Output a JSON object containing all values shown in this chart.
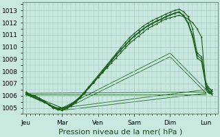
{
  "bg_color": "#c8e8e0",
  "grid_color": "#a0c8b8",
  "line_color": "#1a5c1a",
  "ylim": [
    1004.5,
    1013.7
  ],
  "yticks": [
    1005,
    1006,
    1007,
    1008,
    1009,
    1010,
    1011,
    1012,
    1013
  ],
  "xlabel": "Pression niveau de la mer( hPa )",
  "xlabel_fontsize": 8,
  "tick_fontsize": 6.5,
  "x_day_labels": [
    "Jeu",
    "Mar",
    "Ven",
    "Sam",
    "Dim",
    "Lun"
  ],
  "x_day_positions": [
    0,
    24,
    48,
    72,
    96,
    120
  ],
  "xlim": [
    -2,
    128
  ],
  "curves": [
    {
      "x": [
        0,
        3,
        6,
        9,
        12,
        15,
        18,
        21,
        24,
        27,
        30,
        33,
        36,
        39,
        42,
        45,
        48,
        51,
        54,
        57,
        60,
        63,
        66,
        69,
        72,
        75,
        78,
        81,
        84,
        87,
        90,
        93,
        96,
        99,
        102,
        105,
        108,
        111,
        114,
        117,
        120,
        121,
        122,
        123,
        124
      ],
      "y": [
        1006.2,
        1006.1,
        1005.9,
        1005.7,
        1005.5,
        1005.3,
        1005.1,
        1005.0,
        1005.0,
        1005.1,
        1005.3,
        1005.6,
        1005.9,
        1006.3,
        1006.7,
        1007.1,
        1007.5,
        1007.9,
        1008.3,
        1008.7,
        1009.1,
        1009.5,
        1009.9,
        1010.3,
        1010.6,
        1010.9,
        1011.2,
        1011.5,
        1011.7,
        1011.9,
        1012.1,
        1012.3,
        1012.4,
        1012.5,
        1012.6,
        1012.5,
        1012.3,
        1012.0,
        1011.5,
        1010.8,
        1006.5,
        1006.3,
        1006.2,
        1006.3,
        1006.5
      ],
      "marker": ".",
      "ms": 2.0,
      "lw": 0.8
    },
    {
      "x": [
        0,
        3,
        6,
        9,
        12,
        15,
        18,
        21,
        24,
        27,
        30,
        33,
        36,
        39,
        42,
        45,
        48,
        51,
        54,
        57,
        60,
        63,
        66,
        69,
        72,
        75,
        78,
        81,
        84,
        87,
        90,
        93,
        96,
        99,
        102,
        105,
        108,
        111,
        114,
        117,
        120,
        121,
        122,
        123,
        124
      ],
      "y": [
        1006.3,
        1006.1,
        1006.0,
        1005.8,
        1005.6,
        1005.3,
        1005.1,
        1004.95,
        1004.95,
        1005.05,
        1005.25,
        1005.55,
        1005.9,
        1006.3,
        1006.75,
        1007.2,
        1007.65,
        1008.1,
        1008.55,
        1009.0,
        1009.45,
        1009.9,
        1010.35,
        1010.75,
        1011.1,
        1011.4,
        1011.7,
        1011.95,
        1012.15,
        1012.35,
        1012.5,
        1012.7,
        1012.85,
        1013.0,
        1013.1,
        1012.9,
        1012.5,
        1011.5,
        1009.5,
        1009.2,
        1007.0,
        1006.8,
        1006.6,
        1006.5,
        1006.4
      ],
      "marker": "+",
      "ms": 2.5,
      "lw": 0.8
    },
    {
      "x": [
        0,
        3,
        6,
        9,
        12,
        15,
        18,
        21,
        24,
        27,
        30,
        33,
        36,
        39,
        42,
        45,
        48,
        51,
        54,
        57,
        60,
        63,
        66,
        69,
        72,
        75,
        78,
        81,
        84,
        87,
        90,
        93,
        96,
        99,
        102,
        105,
        108,
        111,
        114,
        117,
        120,
        121,
        122,
        123,
        124
      ],
      "y": [
        1006.1,
        1006.0,
        1005.85,
        1005.7,
        1005.5,
        1005.3,
        1005.05,
        1004.9,
        1004.85,
        1005.0,
        1005.2,
        1005.5,
        1005.85,
        1006.25,
        1006.7,
        1007.1,
        1007.55,
        1008.0,
        1008.45,
        1008.9,
        1009.35,
        1009.75,
        1010.15,
        1010.55,
        1010.9,
        1011.2,
        1011.5,
        1011.75,
        1011.95,
        1012.15,
        1012.3,
        1012.5,
        1012.65,
        1012.8,
        1012.9,
        1012.6,
        1012.0,
        1011.0,
        1009.3,
        1009.0,
        1006.8,
        1006.6,
        1006.4,
        1006.3,
        1006.2
      ],
      "marker": "+",
      "ms": 2.5,
      "lw": 0.8
    },
    {
      "x": [
        0,
        3,
        6,
        9,
        12,
        15,
        18,
        21,
        24,
        27,
        30,
        33,
        36,
        39,
        42,
        45,
        48,
        51,
        54,
        57,
        60,
        63,
        66,
        69,
        72,
        75,
        78,
        81,
        84,
        87,
        90,
        93,
        96,
        99,
        102,
        105,
        108,
        111,
        114,
        117,
        120,
        121,
        122,
        123,
        124
      ],
      "y": [
        1006.2,
        1006.05,
        1005.9,
        1005.7,
        1005.5,
        1005.25,
        1005.0,
        1004.85,
        1004.8,
        1004.95,
        1005.15,
        1005.45,
        1005.8,
        1006.2,
        1006.65,
        1007.05,
        1007.5,
        1007.95,
        1008.4,
        1008.85,
        1009.3,
        1009.7,
        1010.1,
        1010.5,
        1010.85,
        1011.15,
        1011.45,
        1011.7,
        1011.9,
        1012.1,
        1012.25,
        1012.45,
        1012.6,
        1012.75,
        1012.85,
        1012.55,
        1011.9,
        1010.8,
        1009.1,
        1008.8,
        1006.7,
        1006.5,
        1006.3,
        1006.2,
        1006.1
      ],
      "marker": ".",
      "ms": 2.0,
      "lw": 0.8
    }
  ],
  "straight_lines": [
    {
      "x": [
        0,
        120
      ],
      "y": [
        1006.2,
        1006.3
      ]
    },
    {
      "x": [
        0,
        120
      ],
      "y": [
        1006.1,
        1006.1
      ]
    },
    {
      "x": [
        0,
        24,
        120
      ],
      "y": [
        1006.2,
        1005.0,
        1006.5
      ]
    },
    {
      "x": [
        0,
        24,
        120
      ],
      "y": [
        1006.1,
        1004.8,
        1006.2
      ]
    },
    {
      "x": [
        0,
        24,
        96,
        120
      ],
      "y": [
        1006.2,
        1005.0,
        1009.5,
        1006.5
      ]
    },
    {
      "x": [
        0,
        24,
        96,
        120
      ],
      "y": [
        1006.1,
        1004.8,
        1009.2,
        1006.2
      ]
    }
  ]
}
